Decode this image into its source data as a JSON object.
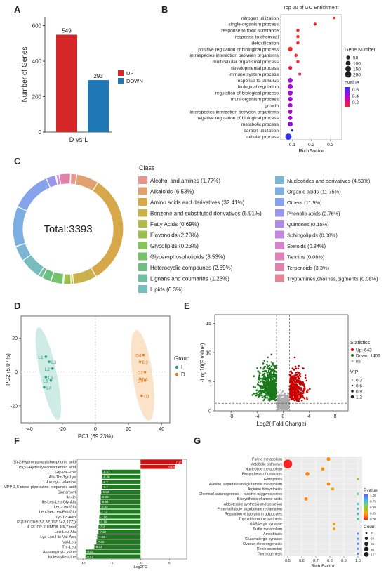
{
  "panel_labels": [
    "A",
    "B",
    "C",
    "D",
    "E",
    "F",
    "G"
  ],
  "chart_data": [
    {
      "panel": "A",
      "type": "bar",
      "categories": [
        "UP",
        "DOWN"
      ],
      "values": [
        549,
        293
      ],
      "value_labels": [
        "549",
        "293"
      ],
      "xlabel": "D-vs-L",
      "ylabel": "Number of Genes",
      "ylim": [
        0,
        650
      ],
      "yticks": [
        0,
        200,
        400,
        600
      ],
      "legend": [
        "UP",
        "DOWN"
      ],
      "colors": [
        "#d62728",
        "#1f77b4"
      ],
      "legend_position": "right"
    },
    {
      "panel": "B",
      "type": "scatter",
      "title": "Top 20 of GO Enrichment",
      "xlabel": "RichFactor",
      "xticks": [
        0.1,
        0.2,
        0.3
      ],
      "xlim": [
        0.04,
        0.36
      ],
      "terms": [
        "nitrogen utilization",
        "single-organism process",
        "response to toxic substance",
        "response to chemical",
        "detoxification",
        "positive regulation of biological process",
        "intraspecies interaction between organisms",
        "multicellular organismal process",
        "developmental process",
        "immune system process",
        "response to stimulus",
        "biological regulation",
        "regulation of biological process",
        "multi-organism process",
        "growth",
        "interspecies interaction between organisms",
        "negative regulation of biological process",
        "metabolic process",
        "carbon utilization",
        "cellular process"
      ],
      "rich_factor": [
        0.32,
        0.22,
        0.13,
        0.13,
        0.13,
        0.09,
        0.12,
        0.13,
        0.09,
        0.14,
        0.09,
        0.09,
        0.09,
        0.09,
        0.09,
        0.09,
        0.09,
        0.09,
        0.1,
        0.08
      ],
      "gene_number": [
        10,
        20,
        25,
        25,
        25,
        80,
        25,
        25,
        50,
        20,
        100,
        110,
        105,
        90,
        80,
        70,
        70,
        110,
        10,
        200
      ],
      "pvalue": [
        0.1,
        0.12,
        0.1,
        0.1,
        0.1,
        0.1,
        0.1,
        0.12,
        0.15,
        0.15,
        0.45,
        0.45,
        0.45,
        0.45,
        0.45,
        0.45,
        0.45,
        0.5,
        0.7,
        0.7
      ],
      "size_legend_title": "Gene Number",
      "size_legend": [
        "50",
        "100",
        "150",
        "200"
      ],
      "color_legend_title": "pvalue",
      "color_legend_ticks": [
        "0.6",
        "0.4",
        "0.2"
      ]
    },
    {
      "panel": "C",
      "type": "pie",
      "center_label": "Total:3393",
      "legend_title": "Class",
      "categories": [
        "Alcohol and amines (1.77%)",
        "Alkaloids (6.53%)",
        "Amino acids and derivatives (32.41%)",
        "Benzene and substituted derivatives (6.91%)",
        "Fatty Acids (0.69%)",
        "Flavonoids (2.23%)",
        "Glycolipids (0.23%)",
        "Glycerophospholipids (3.53%)",
        "Heterocyclic compounds (2.69%)",
        "Lignans and coumarins (1.23%)",
        "Lipids (6.3%)",
        "Nucleotides and derivatives (4.53%)",
        "Organic acids (11.75%)",
        "Others (11.9%)",
        "Phenolic acids (2.76%)",
        "Quinones (0.15%)",
        "Sphingolipids (0.08%)",
        "Steroids (0.84%)",
        "Tannins (0.08%)",
        "Terpenoids (3.3%)",
        "Tryptamines,cholines,pigments (0.08%)"
      ],
      "values": [
        1.77,
        6.53,
        32.41,
        6.91,
        0.69,
        2.23,
        0.23,
        3.53,
        2.69,
        1.23,
        6.3,
        4.53,
        11.75,
        11.9,
        2.76,
        0.15,
        0.08,
        0.84,
        0.08,
        3.3,
        0.08
      ],
      "colors": [
        "#e8958a",
        "#e0a070",
        "#d6a84a",
        "#c9b24c",
        "#b2b94d",
        "#9cbf4f",
        "#86c35a",
        "#74c26a",
        "#6fc080",
        "#72bea0",
        "#78bcbd",
        "#7bb7d3",
        "#7caee2",
        "#84a3ea",
        "#9a97ea",
        "#b08ce6",
        "#c686df",
        "#d683cf",
        "#de82be",
        "#e083ab",
        "#e38698"
      ]
    },
    {
      "panel": "D",
      "type": "scatter",
      "xlabel": "PC1 (69.23%)",
      "ylabel": "PC2 (5.07%)",
      "xlim": [
        -45,
        45
      ],
      "ylim": [
        -30,
        33
      ],
      "xticks": [
        -40,
        -20,
        0,
        20,
        40
      ],
      "yticks": [
        -20,
        0,
        20
      ],
      "legend_title": "Group",
      "series": [
        {
          "name": "L",
          "color": "#2aa18a",
          "x": [
            -30,
            -28,
            -26,
            -30,
            -27,
            -31
          ],
          "y": [
            9,
            6,
            2,
            -3,
            -5,
            -9
          ],
          "labels": [
            "L1",
            "L3",
            "L2",
            "L6",
            "L5",
            "L4"
          ]
        },
        {
          "name": "D",
          "color": "#e07b1c",
          "x": [
            29,
            27,
            30,
            27,
            30,
            28
          ],
          "y": [
            10,
            6,
            0,
            -4,
            -5,
            -14
          ],
          "labels": [
            "D4",
            "D3",
            "D2",
            "D5",
            "D6",
            "D1"
          ]
        }
      ]
    },
    {
      "panel": "E",
      "type": "scatter",
      "xlabel": "Log2( Fold Change)",
      "ylabel": "-Log10(P.value)",
      "xlim": [
        -10.5,
        10
      ],
      "ylim": [
        0,
        16.5
      ],
      "xticks": [
        -8,
        -4,
        0,
        4,
        8
      ],
      "yticks": [
        0,
        5,
        10,
        15
      ],
      "legend_title": "Statistics",
      "legend": [
        "Up: 643",
        "Down: 1406",
        "ns"
      ],
      "colors": [
        "#cc0000",
        "#1a7a1a",
        "#aaaaaa"
      ],
      "size_legend_title": "VIP",
      "size_legend": [
        "0.3",
        "0.6",
        "0.9",
        "1.2"
      ]
    },
    {
      "panel": "F",
      "type": "bar",
      "orientation": "horizontal",
      "xlabel": "Log2FC",
      "xticks": [
        -10,
        -5,
        0,
        5
      ],
      "xlim": [
        -11,
        8
      ],
      "categories": [
        "(S)-2-Hydroxypropylphosphonic acid",
        "15(S)-Hydroxyeicosatrienoic acid",
        "Gly-Val-Phe",
        "Ala-Thr-Tyr-Lys",
        "L-Leucyl-L-alanine",
        "MPP-3,6-dioxo-piperazine-propanoic acid",
        "Cinnamoyl",
        "Ile-Ile",
        "Ile-Leu-Leu-Gly-Ala",
        "Leu-Leu-Glu",
        "Leu-Ser-Leu-Pro-Glu",
        "Tyr-Tyr-Asn",
        "PI(18:0/20:5(5Z,8Z,11Z,14Z,17Z))",
        "8-DHPP-2-HMPB-3,5,7-triol",
        "Leu-Leu-Ala",
        "Lys-Leu-His-Val-Asp",
        "Val-Leu",
        "Thr-Leu",
        "Asparaginyl-Lysine",
        "Isoleucylleucine"
      ],
      "values": [
        7.27,
        6.04,
        -6.67,
        -6.68,
        -6.7,
        -6.7,
        -6.82,
        -6.92,
        -6.94,
        -7.04,
        -7.12,
        -7.16,
        -7.19,
        -7.3,
        -7.32,
        -7.53,
        -7.66,
        -8.03,
        -9.54,
        -9.57
      ],
      "value_labels": [
        "7.27",
        "6.04",
        "-6.67",
        "-6.68",
        "-6.7",
        "-6.7",
        "-6.82",
        "-6.92",
        "-6.94",
        "-7.04",
        "-7.12",
        "-7.16",
        "-7.19",
        "-7.3",
        "-7.32",
        "-7.53",
        "-7.66",
        "-8.03",
        "-9.54",
        "-9.57"
      ]
    },
    {
      "panel": "G",
      "type": "scatter",
      "xlabel": "Rich Factor",
      "xlim": [
        0.47,
        1.03
      ],
      "xticks": [
        0.5,
        0.6,
        0.7,
        0.8,
        0.9,
        1.0
      ],
      "xtick_labels": [
        "0.5",
        "0.6",
        "0.7",
        "0.8",
        "0.9",
        "1.0"
      ],
      "terms": [
        "Purine metabolism",
        "Metabolic pathways",
        "Nucleotide metabolism",
        "Biosynthesis of cofactors",
        "Ferroptosis",
        "Alanine, aspartate and glutamate metabolism",
        "Arginine biosynthesis",
        "Chemical carcinogenesis – reactive oxygen species",
        "Biosynthesis of amino acids",
        "Aldosterone synthesis and secretion",
        "Proximal tubule bicarbonate reclamation",
        "Regulation of lipolysis in adipocytes",
        "Thyroid hormone synthesis",
        "GABAergic synapse",
        "Sulfur metabolism",
        "Amoebiasis",
        "Glutamatergic synapse",
        "Ovarian steroidogenesis",
        "Renin secretion",
        "Thermogenesis"
      ],
      "rich_factor": [
        0.79,
        0.5,
        0.75,
        0.64,
        1.0,
        0.79,
        0.82,
        1.0,
        0.63,
        1.0,
        1.0,
        1.0,
        1.0,
        0.83,
        0.83,
        1.0,
        1.0,
        1.0,
        1.0,
        1.0
      ],
      "count": [
        12,
        125,
        10,
        16,
        3,
        9,
        6,
        3,
        11,
        3,
        3,
        3,
        3,
        4,
        4,
        2,
        2,
        2,
        2,
        2
      ],
      "pvalue": [
        0.2,
        0.0,
        0.22,
        0.2,
        0.5,
        0.2,
        0.25,
        0.6,
        0.2,
        0.7,
        0.7,
        0.7,
        0.7,
        0.25,
        0.25,
        0.9,
        0.9,
        0.9,
        0.9,
        0.9
      ],
      "color_legend_title": "Pvalue",
      "color_legend_ticks": [
        "1.00",
        "0.75",
        "0.50",
        "0.25",
        "0.00"
      ],
      "size_legend_title": "Count",
      "size_legend": [
        "3",
        "34",
        "65",
        "96",
        "127"
      ]
    }
  ]
}
